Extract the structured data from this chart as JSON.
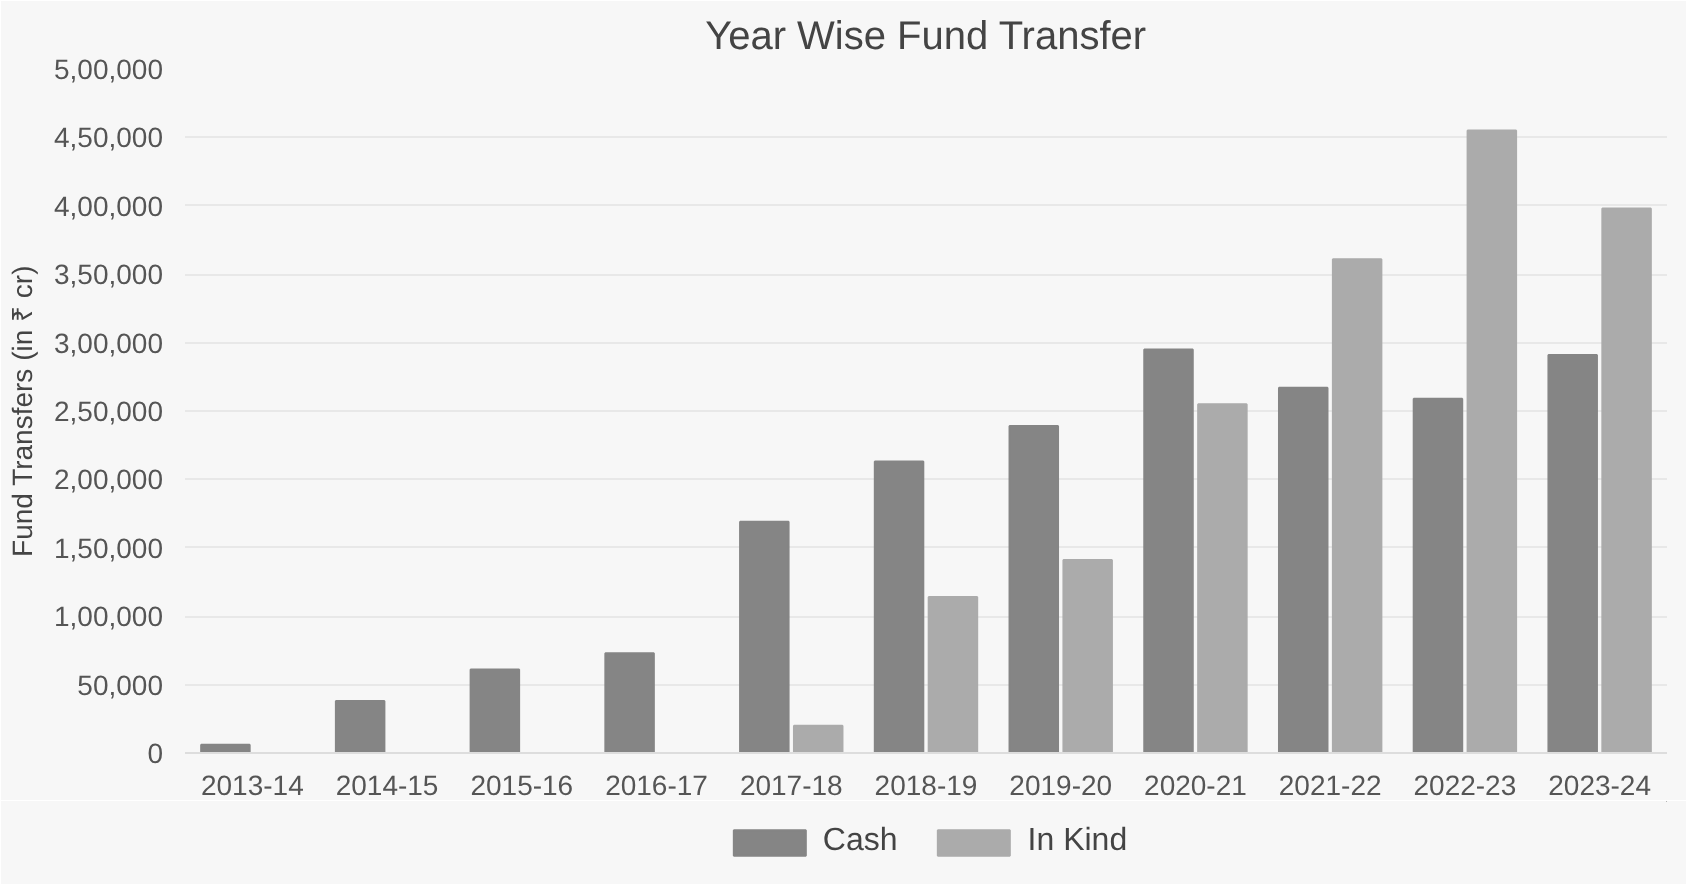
{
  "chart_data": {
    "type": "bar",
    "title": "Year Wise Fund Transfer",
    "ylabel": "Fund Transfers (in ₹ cr)",
    "categories": [
      "2013-14",
      "2014-15",
      "2015-16",
      "2016-17",
      "2017-18",
      "2018-19",
      "2019-20",
      "2020-21",
      "2021-22",
      "2022-23",
      "2023-24"
    ],
    "series": [
      {
        "name": "Cash",
        "color": "#858585",
        "values": [
          6000,
          38000,
          61000,
          73000,
          169000,
          213000,
          239000,
          295000,
          267000,
          259000,
          291000
        ]
      },
      {
        "name": "In Kind",
        "color": "#ababab",
        "values": [
          null,
          null,
          null,
          null,
          20000,
          114000,
          141000,
          255000,
          361000,
          455000,
          398000
        ]
      }
    ],
    "ylim": [
      0,
      500000
    ],
    "yticks": [
      {
        "value": 0,
        "label": "0"
      },
      {
        "value": 50000,
        "label": "50,000"
      },
      {
        "value": 100000,
        "label": "1,00,000"
      },
      {
        "value": 150000,
        "label": "1,50,000"
      },
      {
        "value": 200000,
        "label": "2,00,000"
      },
      {
        "value": 250000,
        "label": "2,50,000"
      },
      {
        "value": 300000,
        "label": "3,00,000"
      },
      {
        "value": 350000,
        "label": "3,50,000"
      },
      {
        "value": 400000,
        "label": "4,00,000"
      },
      {
        "value": 450000,
        "label": "4,50,000"
      },
      {
        "value": 500000,
        "label": "5,00,000"
      }
    ],
    "grid": "y",
    "legend": "bottom"
  }
}
